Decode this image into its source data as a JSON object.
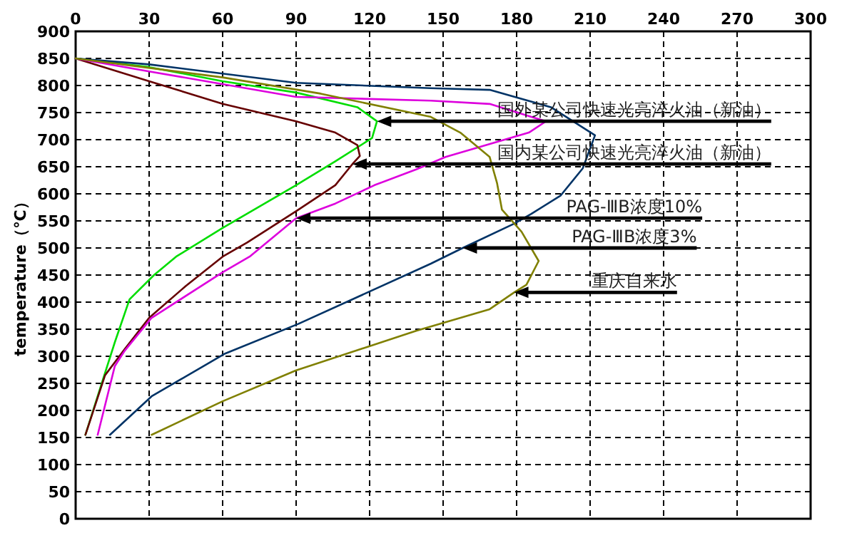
{
  "chart_data": {
    "type": "line",
    "ylabel": "temperature（℃）",
    "xlim": [
      0,
      300
    ],
    "xticks": [
      0,
      30,
      60,
      90,
      120,
      150,
      180,
      210,
      240,
      270,
      300
    ],
    "ylim": [
      0,
      900
    ],
    "yticks": [
      0,
      50,
      100,
      150,
      200,
      250,
      300,
      350,
      400,
      450,
      500,
      550,
      600,
      650,
      700,
      750,
      800,
      850,
      900
    ],
    "grid": true,
    "line_style": "solid",
    "marker": "none",
    "series": [
      {
        "color": "#00dd00",
        "x": [
          0,
          30,
          60,
          90,
          115,
          123,
          121,
          106,
          90,
          60,
          41,
          32,
          22,
          16,
          11,
          4
        ],
        "values": [
          850,
          834,
          808,
          787,
          760,
          734,
          703,
          660,
          616,
          537,
          484,
          450,
          405,
          326,
          255,
          155
        ]
      },
      {
        "color": "#660000",
        "x": [
          0,
          30,
          60,
          90,
          106,
          115,
          116,
          113,
          106,
          90,
          70,
          60,
          45,
          30,
          20,
          12,
          4
        ],
        "values": [
          850,
          808,
          766,
          734,
          713,
          690,
          670,
          655,
          616,
          568,
          510,
          484,
          430,
          371,
          313,
          265,
          155
        ]
      },
      {
        "color": "#dd00dd",
        "x": [
          0,
          30,
          90,
          145,
          169,
          186,
          192,
          185,
          151,
          139,
          122,
          106,
          90,
          71,
          60,
          31,
          20,
          16,
          9
        ],
        "values": [
          850,
          826,
          779,
          772,
          766,
          742,
          734,
          713,
          668,
          645,
          616,
          582,
          555,
          484,
          455,
          371,
          310,
          282,
          155
        ]
      },
      {
        "color": "#003366",
        "x": [
          0,
          30,
          90,
          145,
          169,
          194,
          212,
          207,
          198,
          186,
          179,
          158,
          145,
          91,
          61,
          31,
          14
        ],
        "values": [
          850,
          839,
          805,
          795,
          792,
          760,
          708,
          647,
          597,
          563,
          545,
          500,
          471,
          360,
          305,
          226,
          155
        ]
      },
      {
        "color": "#808000",
        "x": [
          0,
          60,
          100,
          145,
          157,
          169,
          172,
          174,
          182,
          189,
          184,
          179,
          169,
          139,
          90,
          60,
          31
        ],
        "values": [
          850,
          815,
          785,
          742,
          713,
          668,
          620,
          571,
          530,
          476,
          432,
          418,
          387,
          347,
          274,
          217,
          155
        ]
      }
    ],
    "annotations": [
      {
        "text": "国外某公司快速光亮淬火油（新油）",
        "x": 123,
        "y": 734
      },
      {
        "text": "国内某公司快速光亮淬火油（新油）",
        "x": 113,
        "y": 655
      },
      {
        "text": "PAG-ⅢB浓度10%",
        "x": 90,
        "y": 555
      },
      {
        "text": "PAG-ⅢB浓度3%",
        "x": 158,
        "y": 500
      },
      {
        "text": "重庆自来水",
        "x": 179,
        "y": 418
      }
    ]
  }
}
